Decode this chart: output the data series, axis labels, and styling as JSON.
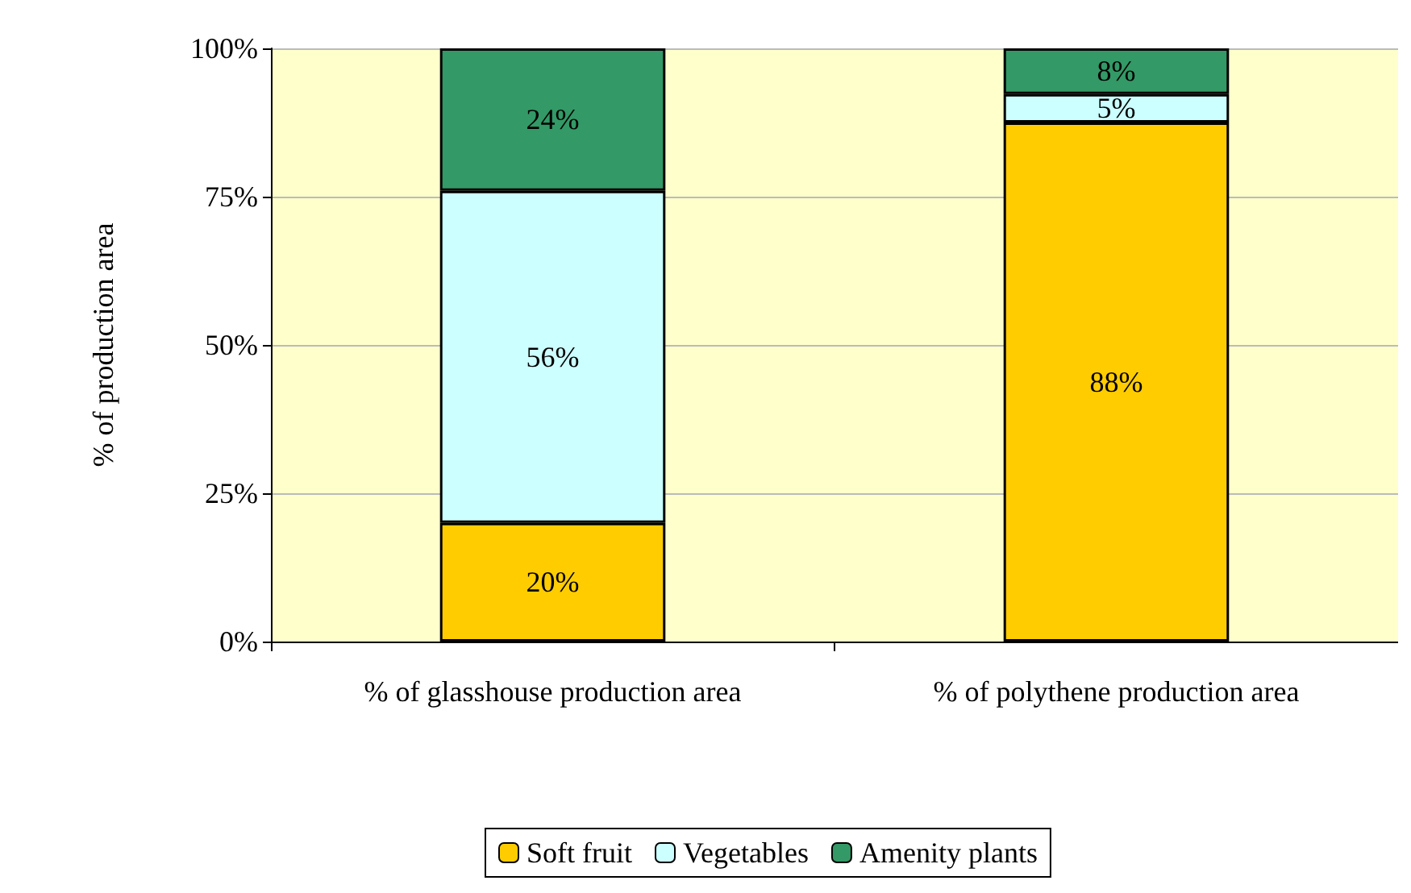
{
  "chart_data": {
    "type": "bar",
    "stacked": true,
    "ylabel": "% of production area",
    "categories": [
      "% of glasshouse production area",
      "% of polythene production area"
    ],
    "series": [
      {
        "name": "Soft fruit",
        "color": "#ffcc00",
        "values": [
          20,
          87.5
        ],
        "value_labels": [
          "20%",
          "88%"
        ]
      },
      {
        "name": "Vegetables",
        "color": "#ccffff",
        "values": [
          56,
          4.8
        ],
        "value_labels": [
          "56%",
          "5%"
        ]
      },
      {
        "name": "Amenity plants",
        "color": "#339966",
        "values": [
          24,
          7.7
        ],
        "value_labels": [
          "24%",
          "8%"
        ]
      }
    ],
    "ylim": [
      0,
      100
    ],
    "yticks": [
      {
        "value": 0,
        "label": "0%"
      },
      {
        "value": 25,
        "label": "25%"
      },
      {
        "value": 50,
        "label": "50%"
      },
      {
        "value": 75,
        "label": "75%"
      },
      {
        "value": 100,
        "label": "100%"
      }
    ],
    "grid": "y",
    "legend": "bottom"
  }
}
